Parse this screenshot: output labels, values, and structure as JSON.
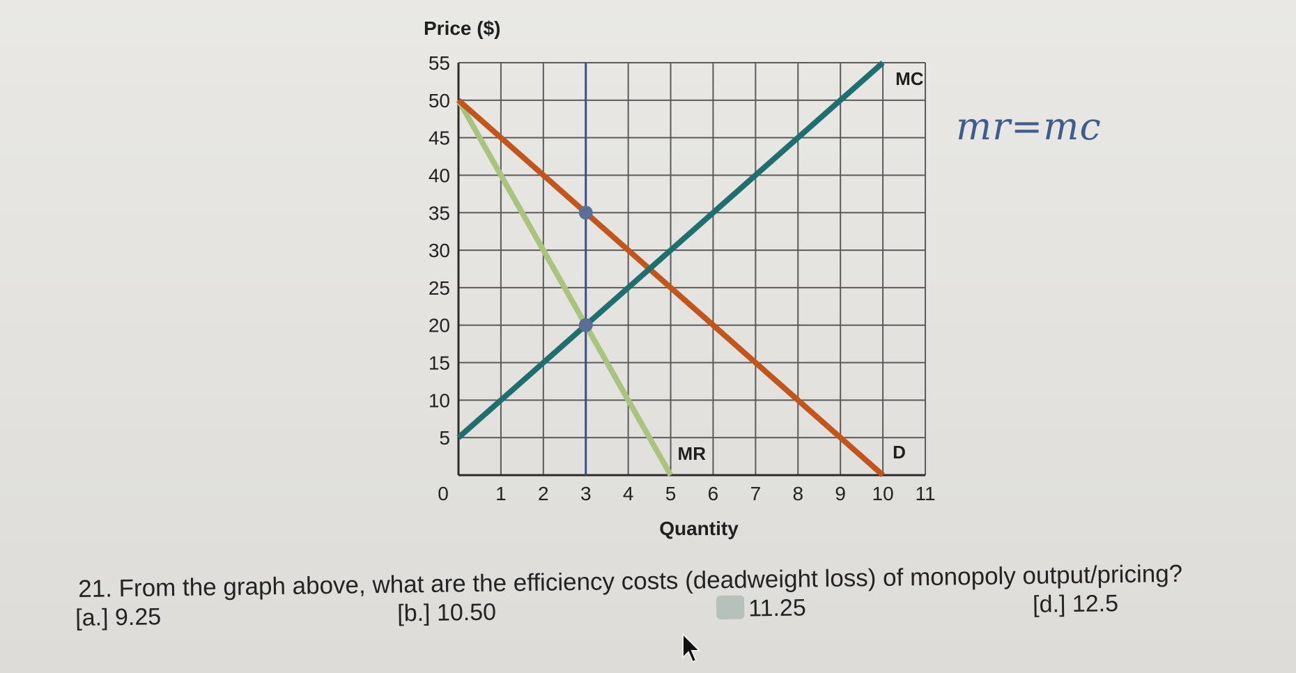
{
  "chart_data": {
    "type": "line",
    "ylabel": "Price ($)",
    "xlabel": "Quantity",
    "xlim": [
      0,
      11
    ],
    "ylim": [
      0,
      55
    ],
    "x_ticks": [
      0,
      1,
      2,
      3,
      4,
      5,
      6,
      7,
      8,
      9,
      10,
      11
    ],
    "y_ticks": [
      5,
      10,
      15,
      20,
      25,
      30,
      35,
      40,
      45,
      50,
      55
    ],
    "grid": true,
    "series": [
      {
        "name": "MC",
        "color": "#1f6f6f",
        "points": [
          [
            0,
            5
          ],
          [
            10,
            55
          ]
        ]
      },
      {
        "name": "D",
        "color": "#c2551c",
        "points": [
          [
            0,
            50
          ],
          [
            10,
            0
          ]
        ]
      },
      {
        "name": "MR",
        "color": "#a9c47e",
        "points": [
          [
            0,
            50
          ],
          [
            5,
            0
          ]
        ]
      }
    ],
    "vertical_lines": [
      {
        "x": 3,
        "color": "#3a4f86"
      }
    ],
    "markers": [
      {
        "x": 3,
        "y": 35,
        "color": "#5a6e96"
      },
      {
        "x": 3,
        "y": 20,
        "color": "#5a6e96"
      }
    ]
  },
  "annotation": "mr=mc",
  "question": "21. From the graph above, what are the efficiency costs (deadweight loss) of monopoly output/pricing?",
  "options": {
    "a": "[a.] 9.25",
    "b": "[b.] 10.50",
    "c": "11.25",
    "d": "[d.] 12.5"
  }
}
